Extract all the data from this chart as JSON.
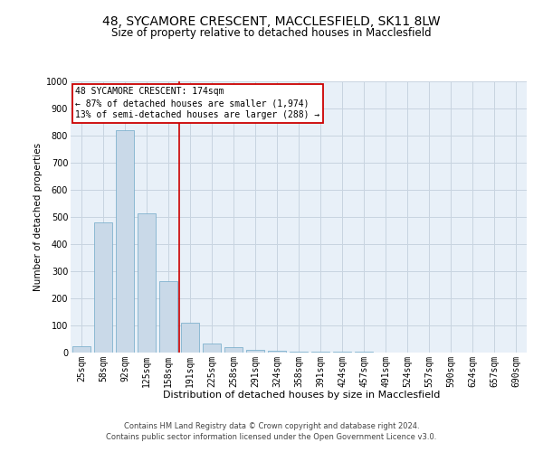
{
  "title": "48, SYCAMORE CRESCENT, MACCLESFIELD, SK11 8LW",
  "subtitle": "Size of property relative to detached houses in Macclesfield",
  "xlabel": "Distribution of detached houses by size in Macclesfield",
  "ylabel": "Number of detached properties",
  "footer_line1": "Contains HM Land Registry data © Crown copyright and database right 2024.",
  "footer_line2": "Contains public sector information licensed under the Open Government Licence v3.0.",
  "annotation_line1": "48 SYCAMORE CRESCENT: 174sqm",
  "annotation_line2": "← 87% of detached houses are smaller (1,974)",
  "annotation_line3": "13% of semi-detached houses are larger (288) →",
  "bar_color": "#c9d9e8",
  "bar_edge_color": "#6fa8c8",
  "grid_color": "#c8d4e0",
  "redline_color": "#cc0000",
  "annotation_box_color": "#cc0000",
  "background_color": "#ffffff",
  "plot_bg_color": "#e8f0f8",
  "categories": [
    "25sqm",
    "58sqm",
    "92sqm",
    "125sqm",
    "158sqm",
    "191sqm",
    "225sqm",
    "258sqm",
    "291sqm",
    "324sqm",
    "358sqm",
    "391sqm",
    "424sqm",
    "457sqm",
    "491sqm",
    "524sqm",
    "557sqm",
    "590sqm",
    "624sqm",
    "657sqm",
    "690sqm"
  ],
  "values": [
    25,
    480,
    820,
    515,
    265,
    110,
    35,
    20,
    10,
    8,
    5,
    4,
    3,
    2,
    1,
    1,
    0,
    0,
    0,
    0,
    0
  ],
  "redline_x": 4.5,
  "ylim": [
    0,
    1000
  ],
  "yticks": [
    0,
    100,
    200,
    300,
    400,
    500,
    600,
    700,
    800,
    900,
    1000
  ],
  "title_fontsize": 10,
  "subtitle_fontsize": 8.5,
  "ylabel_fontsize": 7.5,
  "xlabel_fontsize": 8,
  "tick_fontsize": 7,
  "annotation_fontsize": 7,
  "footer_fontsize": 6
}
